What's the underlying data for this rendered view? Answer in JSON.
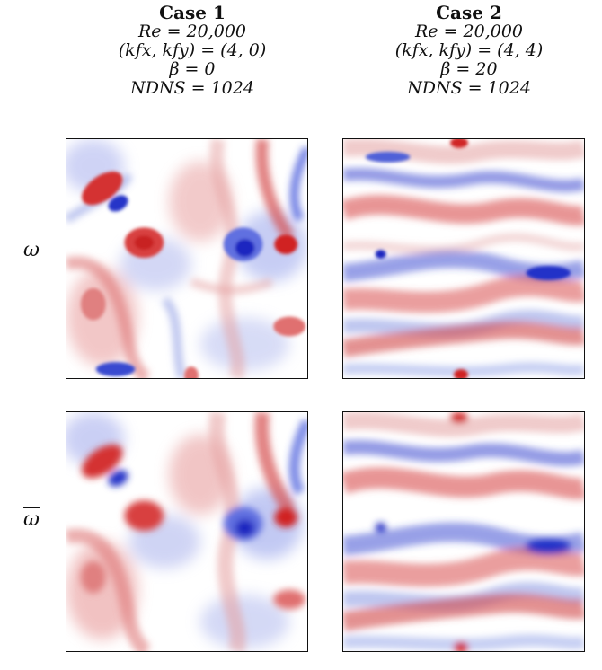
{
  "columns": [
    {
      "title": "Case 1",
      "re": "Re = 20,000",
      "k": "(kfx, kfy) = (4, 0)",
      "beta": "β = 0",
      "n": "NDNS = 1024"
    },
    {
      "title": "Case 2",
      "re": "Re = 20,000",
      "k": "(kfx, kfy) = (4, 4)",
      "beta": "β = 20",
      "n": "NDNS = 1024"
    }
  ],
  "rows": [
    {
      "label": "ω"
    },
    {
      "label": "ω"
    }
  ],
  "colors": {
    "positive": "#d62f2f",
    "negative": "#2b3fd6",
    "neutral": "#ffffff"
  }
}
